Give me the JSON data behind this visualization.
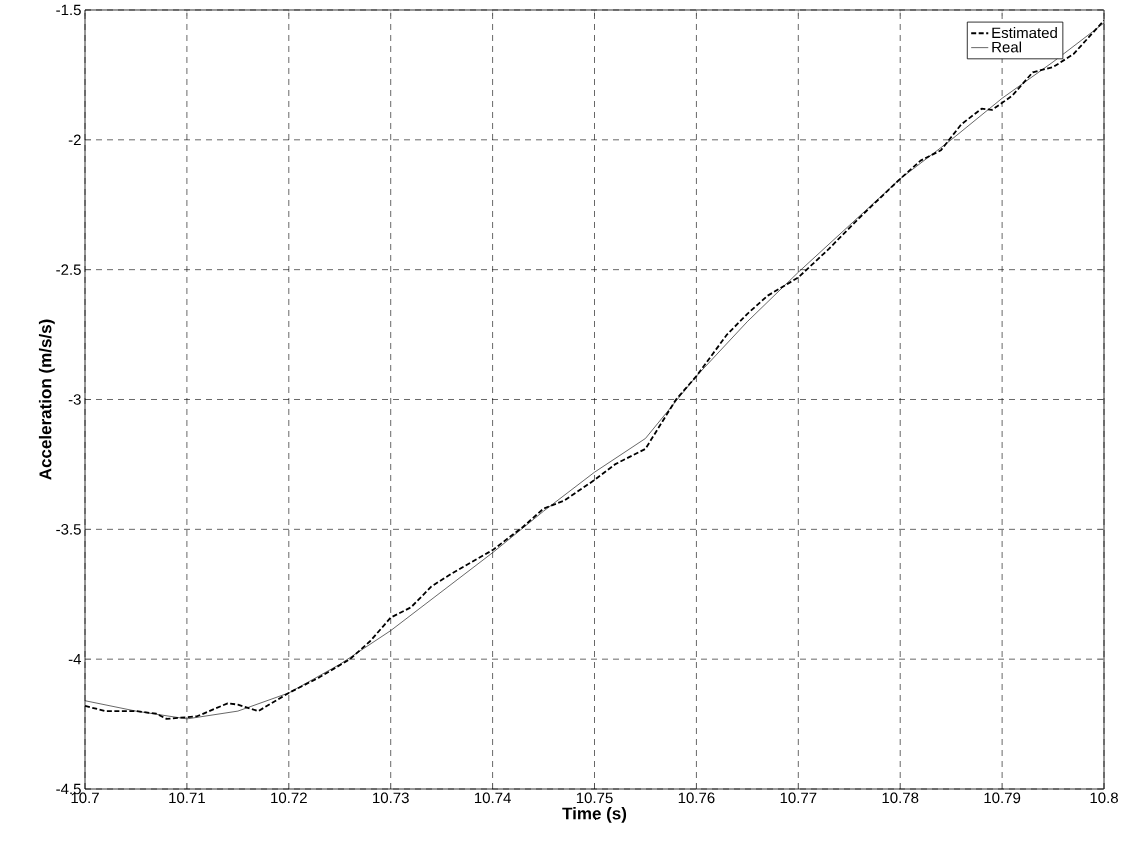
{
  "chart_data": {
    "type": "line",
    "xlabel": "Time (s)",
    "ylabel": "Acceleration (m/s/s)",
    "xlim": [
      10.7,
      10.8
    ],
    "ylim": [
      -4.5,
      -1.5
    ],
    "xticks": [
      10.7,
      10.71,
      10.72,
      10.73,
      10.74,
      10.75,
      10.76,
      10.77,
      10.78,
      10.79,
      10.8
    ],
    "yticks": [
      -4.5,
      -4,
      -3.5,
      -3,
      -2.5,
      -2,
      -1.5
    ],
    "grid": true,
    "legend": "top right",
    "series": [
      {
        "name": "Estimated",
        "color": "#000000",
        "line_style": "dashed",
        "x": [
          10.7,
          10.702,
          10.705,
          10.707,
          10.708,
          10.711,
          10.714,
          10.715,
          10.717,
          10.72,
          10.723,
          10.726,
          10.728,
          10.73,
          10.732,
          10.734,
          10.736,
          10.74,
          10.743,
          10.745,
          10.747,
          10.75,
          10.752,
          10.755,
          10.758,
          10.76,
          10.763,
          10.765,
          10.767,
          10.77,
          10.773,
          10.776,
          10.78,
          10.782,
          10.784,
          10.786,
          10.788,
          10.789,
          10.791,
          10.793,
          10.795,
          10.797,
          10.8
        ],
        "values": [
          -4.18,
          -4.2,
          -4.2,
          -4.21,
          -4.23,
          -4.22,
          -4.17,
          -4.175,
          -4.2,
          -4.13,
          -4.07,
          -4.0,
          -3.93,
          -3.84,
          -3.8,
          -3.72,
          -3.67,
          -3.58,
          -3.49,
          -3.42,
          -3.39,
          -3.31,
          -3.25,
          -3.19,
          -3.0,
          -2.91,
          -2.75,
          -2.67,
          -2.6,
          -2.53,
          -2.42,
          -2.3,
          -2.15,
          -2.08,
          -2.04,
          -1.94,
          -1.88,
          -1.885,
          -1.83,
          -1.74,
          -1.72,
          -1.67,
          -1.54
        ]
      },
      {
        "name": "Real",
        "color": "#000000",
        "line_style": "solid",
        "x": [
          10.7,
          10.705,
          10.71,
          10.715,
          10.72,
          10.725,
          10.73,
          10.735,
          10.74,
          10.745,
          10.75,
          10.755,
          10.76,
          10.765,
          10.77,
          10.775,
          10.78,
          10.785,
          10.79,
          10.795,
          10.8
        ],
        "values": [
          -4.16,
          -4.2,
          -4.23,
          -4.2,
          -4.13,
          -4.02,
          -3.89,
          -3.74,
          -3.59,
          -3.43,
          -3.28,
          -3.15,
          -2.91,
          -2.7,
          -2.51,
          -2.33,
          -2.15,
          -2.0,
          -1.84,
          -1.7,
          -1.55
        ]
      }
    ]
  }
}
